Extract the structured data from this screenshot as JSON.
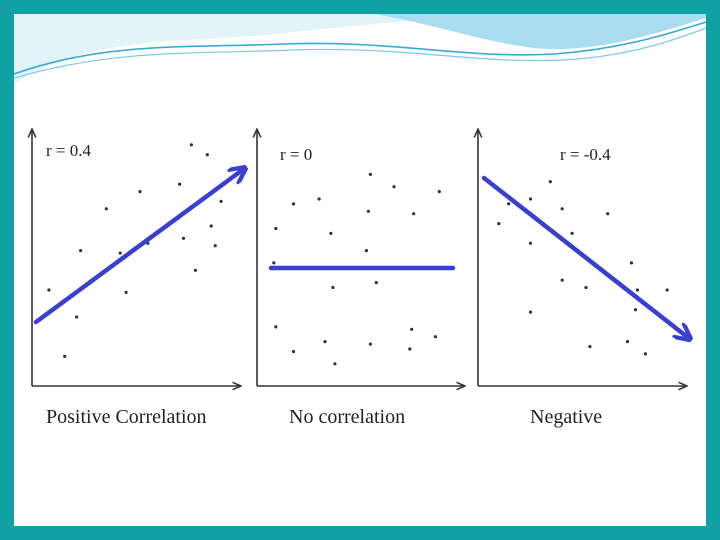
{
  "colors": {
    "border": "#11a0a4",
    "wave_light": "#bfe6f4",
    "wave_mid": "#7cc8e6",
    "wave_line": "#3aa9d3",
    "arrow": "#3a3fd1",
    "axis": "#333333",
    "dot": "#333333"
  },
  "panels": [
    {
      "r_label": "r =  0.4",
      "caption": "Positive Correlation",
      "trend": "up",
      "points": [
        [
          0.78,
          0.96
        ],
        [
          0.86,
          0.92
        ],
        [
          0.72,
          0.8
        ],
        [
          0.93,
          0.73
        ],
        [
          0.52,
          0.77
        ],
        [
          0.35,
          0.7
        ],
        [
          0.88,
          0.63
        ],
        [
          0.74,
          0.58
        ],
        [
          0.56,
          0.56
        ],
        [
          0.22,
          0.53
        ],
        [
          0.42,
          0.52
        ],
        [
          0.9,
          0.55
        ],
        [
          0.8,
          0.45
        ],
        [
          0.06,
          0.37
        ],
        [
          0.45,
          0.36
        ],
        [
          0.2,
          0.26
        ],
        [
          0.14,
          0.1
        ]
      ]
    },
    {
      "r_label": "r = 0",
      "caption": "No correlation",
      "trend": "flat",
      "points": [
        [
          0.55,
          0.84
        ],
        [
          0.67,
          0.79
        ],
        [
          0.9,
          0.77
        ],
        [
          0.29,
          0.74
        ],
        [
          0.16,
          0.72
        ],
        [
          0.54,
          0.69
        ],
        [
          0.77,
          0.68
        ],
        [
          0.07,
          0.62
        ],
        [
          0.35,
          0.6
        ],
        [
          0.53,
          0.53
        ],
        [
          0.06,
          0.48
        ],
        [
          0.58,
          0.4
        ],
        [
          0.36,
          0.38
        ],
        [
          0.07,
          0.22
        ],
        [
          0.76,
          0.21
        ],
        [
          0.88,
          0.18
        ],
        [
          0.32,
          0.16
        ],
        [
          0.55,
          0.15
        ],
        [
          0.75,
          0.13
        ],
        [
          0.16,
          0.12
        ],
        [
          0.37,
          0.07
        ]
      ]
    },
    {
      "r_label": "r = -0.4",
      "caption": "Negative",
      "trend": "down",
      "points": [
        [
          0.34,
          0.81
        ],
        [
          0.24,
          0.74
        ],
        [
          0.13,
          0.72
        ],
        [
          0.4,
          0.7
        ],
        [
          0.63,
          0.68
        ],
        [
          0.08,
          0.64
        ],
        [
          0.45,
          0.6
        ],
        [
          0.24,
          0.56
        ],
        [
          0.75,
          0.48
        ],
        [
          0.4,
          0.41
        ],
        [
          0.52,
          0.38
        ],
        [
          0.78,
          0.37
        ],
        [
          0.93,
          0.37
        ],
        [
          0.77,
          0.29
        ],
        [
          0.24,
          0.28
        ],
        [
          0.73,
          0.16
        ],
        [
          0.54,
          0.14
        ],
        [
          0.82,
          0.11
        ]
      ]
    }
  ]
}
